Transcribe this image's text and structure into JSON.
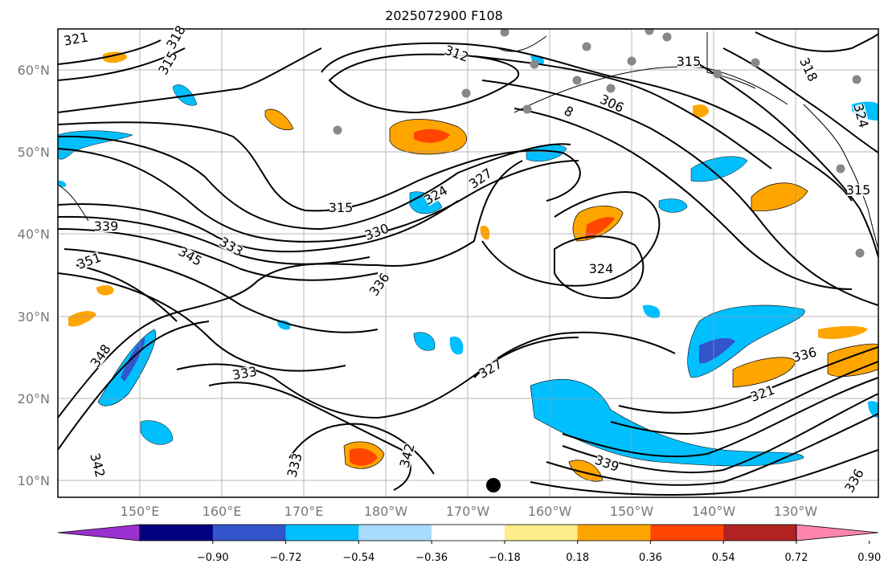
{
  "title": "2025072900 F108",
  "lat_labels": [
    "60°N",
    "50°N",
    "40°N",
    "30°N",
    "20°N",
    "10°N"
  ],
  "lon_labels": [
    "150°E",
    "160°E",
    "170°E",
    "180°W",
    "170°W",
    "160°W",
    "150°W",
    "140°W",
    "130°W"
  ],
  "contour_labels": [
    "321",
    "318",
    "315",
    "312",
    "306",
    "315",
    "324",
    "327",
    "330",
    "333",
    "339",
    "345",
    "351",
    "336",
    "324",
    "315",
    "321",
    "336",
    "333",
    "327",
    "342",
    "348",
    "342",
    "339",
    "336",
    "8",
    "318",
    "324",
    "333",
    "315"
  ],
  "colorbar": {
    "colors": [
      "#9b30d0",
      "#000080",
      "#3355cc",
      "#00bfff",
      "#aadcff",
      "#ffffff",
      "#ffec8b",
      "#ffa500",
      "#ff4500",
      "#b22222",
      "#ff85b0"
    ],
    "tick_labels": [
      "−0.90",
      "−0.72",
      "−0.54",
      "−0.36",
      "−0.18",
      "0.18",
      "0.36",
      "0.54",
      "0.72",
      "0.90"
    ]
  }
}
